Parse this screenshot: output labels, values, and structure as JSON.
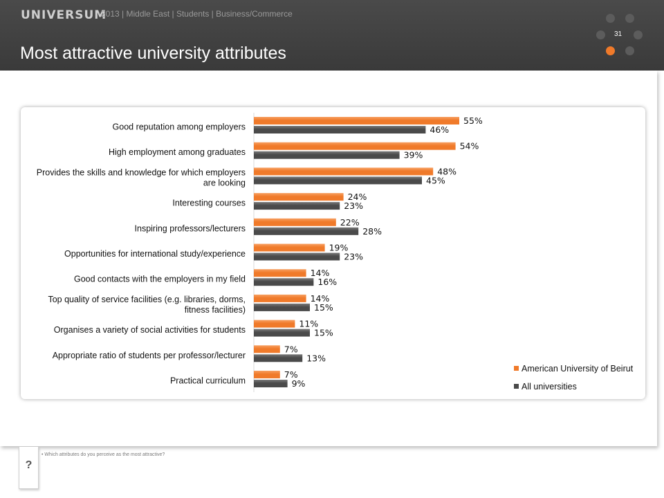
{
  "header": {
    "brand": "UNIVERSUM",
    "subline": "2013 | Middle East | Students | Business/Commerce",
    "title": "Most attractive university attributes",
    "page_number": "31",
    "accent_color": "#f07a2a"
  },
  "footnote": "• Which attributes do you perceive as the most attractive?",
  "help_label": "?",
  "chart_data": {
    "type": "bar",
    "orientation": "horizontal",
    "categories": [
      [
        "Good reputation among employers"
      ],
      [
        "High employment among graduates"
      ],
      [
        "Provides the skills and knowledge for which employers",
        "are looking"
      ],
      [
        "Interesting courses"
      ],
      [
        "Inspiring professors/lecturers"
      ],
      [
        "Opportunities for international study/experience"
      ],
      [
        "Good contacts with the employers in my field"
      ],
      [
        "Top quality of service facilities (e.g. libraries, dorms,",
        "fitness facilities)"
      ],
      [
        "Organises a variety of social activities for students"
      ],
      [
        "Appropriate ratio of students per professor/lecturer"
      ],
      [
        "Practical curriculum"
      ]
    ],
    "series": [
      {
        "name": "American University of Beirut",
        "color": "#f07a2a",
        "values": [
          55,
          54,
          48,
          24,
          22,
          19,
          14,
          14,
          11,
          7,
          7
        ]
      },
      {
        "name": "All universities",
        "color": "#4a4a4a",
        "values": [
          46,
          39,
          45,
          23,
          28,
          23,
          16,
          15,
          15,
          13,
          9
        ]
      }
    ],
    "value_suffix": "%",
    "xlim": [
      0,
      100
    ],
    "legend_position": "bottom-right",
    "grid": false
  }
}
